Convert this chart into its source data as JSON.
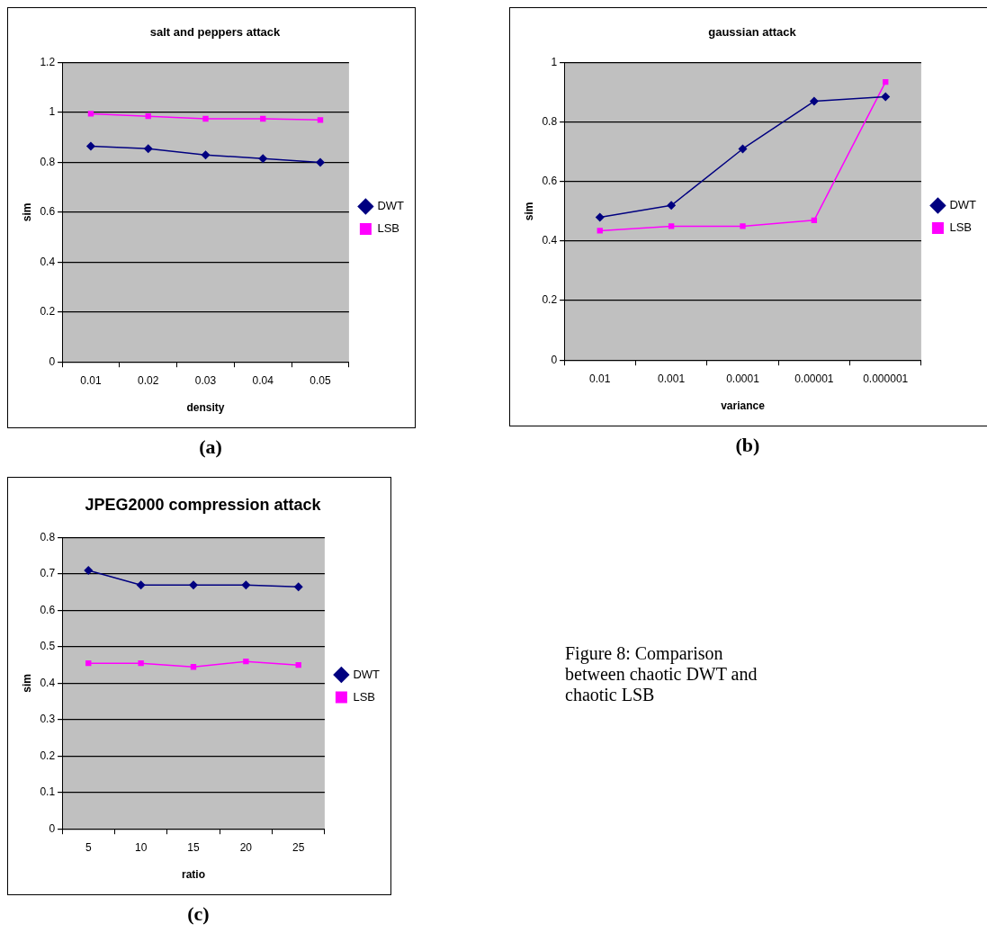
{
  "chart_data": [
    {
      "type": "line",
      "title": "salt and peppers attack",
      "xlabel": "density",
      "ylabel": "sim",
      "categories": [
        "0.01",
        "0.02",
        "0.03",
        "0.04",
        "0.05"
      ],
      "series": [
        {
          "name": "DWT",
          "color": "#000080",
          "marker": "diamond",
          "values": [
            0.865,
            0.855,
            0.83,
            0.815,
            0.8
          ]
        },
        {
          "name": "LSB",
          "color": "#ff00ff",
          "marker": "square",
          "values": [
            0.995,
            0.985,
            0.975,
            0.975,
            0.97
          ]
        }
      ],
      "ylim": [
        0,
        1.2
      ],
      "yticks": [
        0,
        0.2,
        0.4,
        0.6,
        0.8,
        1,
        1.2
      ],
      "grid": "y",
      "legend": "right",
      "annotations": [
        "(a)"
      ]
    },
    {
      "type": "line",
      "title": "gaussian attack",
      "xlabel": "variance",
      "ylabel": "sim",
      "categories": [
        "0.01",
        "0.001",
        "0.0001",
        "0.00001",
        "0.000001"
      ],
      "series": [
        {
          "name": "DWT",
          "color": "#000080",
          "marker": "diamond",
          "values": [
            0.48,
            0.52,
            0.71,
            0.87,
            0.885
          ]
        },
        {
          "name": "LSB",
          "color": "#ff00ff",
          "marker": "square",
          "values": [
            0.435,
            0.45,
            0.45,
            0.47,
            0.935
          ]
        }
      ],
      "ylim": [
        0,
        1
      ],
      "yticks": [
        0,
        0.2,
        0.4,
        0.6,
        0.8,
        1
      ],
      "grid": "y",
      "legend": "right",
      "annotations": [
        "(b)"
      ]
    },
    {
      "type": "line",
      "title": "JPEG2000 compression attack",
      "xlabel": "ratio",
      "ylabel": "sim",
      "categories": [
        "5",
        "10",
        "15",
        "20",
        "25"
      ],
      "series": [
        {
          "name": "DWT",
          "color": "#000080",
          "marker": "diamond",
          "values": [
            0.71,
            0.67,
            0.67,
            0.67,
            0.665
          ]
        },
        {
          "name": "LSB",
          "color": "#ff00ff",
          "marker": "square",
          "values": [
            0.455,
            0.455,
            0.445,
            0.46,
            0.45
          ]
        }
      ],
      "ylim": [
        0,
        0.8
      ],
      "yticks": [
        0,
        0.1,
        0.2,
        0.3,
        0.4,
        0.5,
        0.6,
        0.7,
        0.8
      ],
      "grid": "y",
      "legend": "right",
      "annotations": [
        "(c)",
        "Figure 8:  Comparison between chaotic DWT and chaotic LSB"
      ]
    }
  ]
}
